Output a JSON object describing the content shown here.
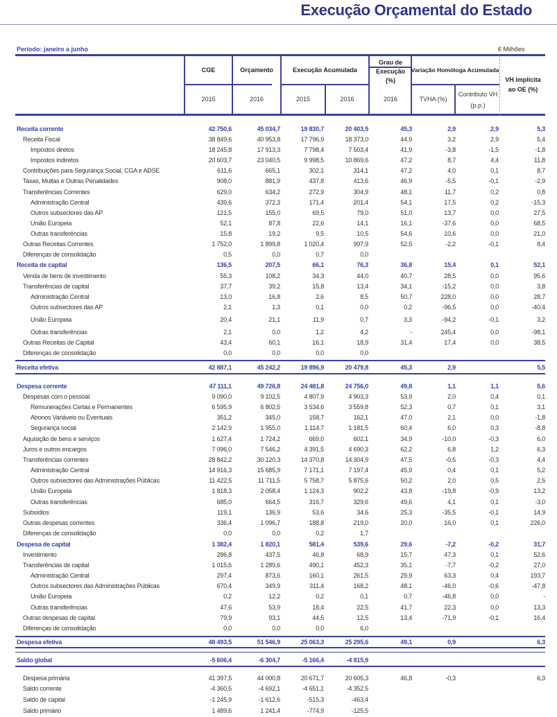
{
  "title": "Execução Orçamental do Estado",
  "period": "Período: janeiro a junho",
  "unit": "€ Milhões",
  "colors": {
    "accent": "#3b44a6",
    "rule": "#3b4199"
  },
  "header": {
    "cge": "CGE",
    "orcamento": "Orçamento",
    "execucao": "Execução Acumulada",
    "grau": "Grau de Execução (%)",
    "variacao": "Variação Homóloga Acumulada",
    "vh": "VH implícita ao OE (%)",
    "y_cge": "2015",
    "y_orc": "2016",
    "y_e15": "2015",
    "y_e16": "2016",
    "y_grau": "2016",
    "tvha": "TVHA (%)",
    "contributo": "Contributo VH (p.p.)"
  },
  "rows": [
    {
      "label": "Receita corrente",
      "level": 0,
      "v": [
        "42 750,6",
        "45 034,7",
        "19 830,7",
        "20 403,5",
        "45,3",
        "2,9",
        "2,9",
        "5,3"
      ]
    },
    {
      "label": "Receita Fiscal",
      "level": 1,
      "v": [
        "38 849,6",
        "40 953,8",
        "17 796,9",
        "18 373,0",
        "44,9",
        "3,2",
        "2,9",
        "5,4"
      ]
    },
    {
      "label": "Impostos diretos",
      "level": 2,
      "v": [
        "18 245,8",
        "17 913,3",
        "7 798,4",
        "7 503,4",
        "41,9",
        "-3,8",
        "-1,5",
        "-1,8"
      ]
    },
    {
      "label": "Impostos indiretos",
      "level": 2,
      "v": [
        "20 603,7",
        "23 040,5",
        "9 998,5",
        "10 869,6",
        "47,2",
        "8,7",
        "4,4",
        "11,8"
      ]
    },
    {
      "label": "Contribuições para Segurança Social, CGA e ADSE",
      "level": 1,
      "v": [
        "611,6",
        "665,1",
        "302,1",
        "314,1",
        "47,2",
        "4,0",
        "0,1",
        "8,7"
      ]
    },
    {
      "label": "Taxas, Multas e Outras Penalidades",
      "level": 1,
      "v": [
        "908,0",
        "881,9",
        "437,8",
        "413,6",
        "46,9",
        "-5,5",
        "-0,1",
        "-2,9"
      ]
    },
    {
      "label": "Transferências Correntes",
      "level": 1,
      "v": [
        "629,0",
        "634,2",
        "272,9",
        "304,9",
        "48,1",
        "11,7",
        "0,2",
        "0,8"
      ]
    },
    {
      "label": "Administração Central",
      "level": 2,
      "v": [
        "439,6",
        "372,3",
        "171,4",
        "201,4",
        "54,1",
        "17,5",
        "0,2",
        "-15,3"
      ]
    },
    {
      "label": "Outros subsectores das AP",
      "level": 2,
      "v": [
        "121,5",
        "155,0",
        "69,5",
        "79,0",
        "51,0",
        "13,7",
        "0,0",
        "27,5"
      ]
    },
    {
      "label": "União Europeia",
      "level": 2,
      "v": [
        "52,1",
        "87,8",
        "22,6",
        "14,1",
        "16,1",
        "-37,6",
        "0,0",
        "68,5"
      ]
    },
    {
      "label": "Outras transferências",
      "level": 2,
      "v": [
        "15,8",
        "19,2",
        "9,5",
        "10,5",
        "54,6",
        "10,6",
        "0,0",
        "21,0"
      ]
    },
    {
      "label": "Outras Receitas Correntes",
      "level": 1,
      "v": [
        "1 752,0",
        "1 899,8",
        "1 020,4",
        "997,9",
        "52,5",
        "-2,2",
        "-0,1",
        "8,4"
      ]
    },
    {
      "label": "Diferenças de consolidação",
      "level": 1,
      "v": [
        "0,5",
        "0,0",
        "0,7",
        "0,0",
        "",
        "",
        "",
        ""
      ]
    },
    {
      "label": "Receita de capital",
      "level": 0,
      "v": [
        "136,5",
        "207,5",
        "66,1",
        "76,3",
        "36,8",
        "15,4",
        "0,1",
        "52,1"
      ]
    },
    {
      "label": "Venda de bens de investimento",
      "level": 1,
      "v": [
        "55,3",
        "108,2",
        "34,3",
        "44,0",
        "40,7",
        "28,5",
        "0,0",
        "95,6"
      ]
    },
    {
      "label": "Transferências de capital",
      "level": 1,
      "v": [
        "37,7",
        "39,2",
        "15,8",
        "13,4",
        "34,1",
        "-15,2",
        "0,0",
        "3,8"
      ]
    },
    {
      "label": "Administração Central",
      "level": 2,
      "v": [
        "13,0",
        "16,8",
        "2,6",
        "8,5",
        "50,7",
        "228,0",
        "0,0",
        "28,7"
      ]
    },
    {
      "label": "Outros subsectores das AP",
      "level": 2,
      "v": [
        "2,1",
        "1,3",
        "0,1",
        "0,0",
        "0,2",
        "-96,5",
        "0,0",
        "-40,4"
      ]
    },
    {
      "label": "União Europeia",
      "level": 2,
      "v": [
        "20,4",
        "21,1",
        "11,9",
        "0,7",
        "3,3",
        "-94,2",
        "-0,1",
        "3,2"
      ]
    },
    {
      "label": "Outras transferências",
      "level": 2,
      "v": [
        "2,1",
        "0,0",
        "1,2",
        "4,2",
        "-",
        "245,4",
        "0,0",
        "-98,1"
      ]
    },
    {
      "label": "Outras Receitas de Capital",
      "level": 1,
      "v": [
        "43,4",
        "60,1",
        "16,1",
        "18,9",
        "31,4",
        "17,4",
        "0,0",
        "38,5"
      ]
    },
    {
      "label": "Diferenças de consolidação",
      "level": 1,
      "v": [
        "0,0",
        "0,0",
        "0,0",
        "0,0",
        "",
        "",
        "",
        ""
      ]
    },
    {
      "label": "Receita efetiva",
      "level": 0,
      "v": [
        "42 887,1",
        "45 242,2",
        "19 896,9",
        "20 479,8",
        "45,3",
        "2,9",
        "",
        "5,5"
      ]
    },
    {
      "label": "Despesa corrente",
      "level": 0,
      "v": [
        "47 111,1",
        "49 726,8",
        "24 481,8",
        "24 756,0",
        "49,8",
        "1,1",
        "1,1",
        "5,6"
      ]
    },
    {
      "label": "Despesas com o pessoal",
      "level": 1,
      "v": [
        "9 090,0",
        "9 102,5",
        "4 807,9",
        "4 903,3",
        "53,9",
        "2,0",
        "0,4",
        "0,1"
      ]
    },
    {
      "label": "Remunerações Certas e Permanentes",
      "level": 2,
      "v": [
        "6 595,9",
        "6 802,5",
        "3 534,6",
        "3 559,8",
        "52,3",
        "0,7",
        "0,1",
        "3,1"
      ]
    },
    {
      "label": "Abonos Variáveis ou Eventuais",
      "level": 2,
      "v": [
        "351,2",
        "345,0",
        "158,7",
        "162,1",
        "47,0",
        "2,1",
        "0,0",
        "-1,8"
      ]
    },
    {
      "label": "Segurança social",
      "level": 2,
      "v": [
        "2 142,9",
        "1 955,0",
        "1 114,7",
        "1 181,5",
        "60,4",
        "6,0",
        "0,3",
        "-8,8"
      ]
    },
    {
      "label": "Aquisição de bens e serviços",
      "level": 1,
      "v": [
        "1 627,4",
        "1 724,2",
        "669,0",
        "602,1",
        "34,9",
        "-10,0",
        "-0,3",
        "6,0"
      ]
    },
    {
      "label": "Juros e outros encargos",
      "level": 1,
      "v": [
        "7 096,0",
        "7 546,2",
        "4 391,5",
        "4 690,3",
        "62,2",
        "6,8",
        "1,2",
        "6,3"
      ]
    },
    {
      "label": "Transferências correntes",
      "level": 1,
      "v": [
        "28 842,2",
        "30 120,3",
        "14 370,8",
        "14 304,9",
        "47,5",
        "-0,5",
        "-0,3",
        "4,4"
      ]
    },
    {
      "label": "Administração Central",
      "level": 2,
      "v": [
        "14 916,3",
        "15 685,9",
        "7 171,1",
        "7 197,4",
        "45,9",
        "0,4",
        "0,1",
        "5,2"
      ]
    },
    {
      "label": "Outros subsectores das Administrações Públicas",
      "level": 2,
      "v": [
        "11 422,5",
        "11 711,5",
        "5 758,7",
        "5 875,6",
        "50,2",
        "2,0",
        "0,5",
        "2,5"
      ]
    },
    {
      "label": "União Europeia",
      "level": 2,
      "v": [
        "1 818,3",
        "2 058,4",
        "1 124,3",
        "902,2",
        "43,8",
        "-19,8",
        "-0,9",
        "13,2"
      ]
    },
    {
      "label": "Outras transferências",
      "level": 2,
      "v": [
        "685,0",
        "664,5",
        "316,7",
        "329,6",
        "49,6",
        "4,1",
        "0,1",
        "-3,0"
      ]
    },
    {
      "label": "Subsídios",
      "level": 1,
      "v": [
        "119,1",
        "136,9",
        "53,6",
        "34,6",
        "25,3",
        "-35,5",
        "-0,1",
        "14,9"
      ]
    },
    {
      "label": "Outras despesas correntes",
      "level": 1,
      "v": [
        "336,4",
        "1 096,7",
        "188,8",
        "219,0",
        "20,0",
        "16,0",
        "0,1",
        "226,0"
      ]
    },
    {
      "label": "Diferenças de consolidação",
      "level": 1,
      "v": [
        "0,0",
        "0,0",
        "0,2",
        "1,7",
        "",
        "",
        "",
        ""
      ]
    },
    {
      "label": "Despesa de capital",
      "level": 0,
      "v": [
        "1 382,4",
        "1 820,1",
        "581,4",
        "539,6",
        "29,6",
        "-7,2",
        "-0,2",
        "31,7"
      ]
    },
    {
      "label": "Investimento",
      "level": 1,
      "v": [
        "286,8",
        "437,5",
        "46,8",
        "68,9",
        "15,7",
        "47,3",
        "0,1",
        "52,6"
      ]
    },
    {
      "label": "Transferências de capital",
      "level": 1,
      "v": [
        "1 015,6",
        "1 289,6",
        "490,1",
        "452,3",
        "35,1",
        "-7,7",
        "-0,2",
        "27,0"
      ]
    },
    {
      "label": "Administração Central",
      "level": 2,
      "v": [
        "297,4",
        "873,6",
        "160,1",
        "261,5",
        "29,9",
        "63,3",
        "0,4",
        "193,7"
      ]
    },
    {
      "label": "Outros subsectores das Administrações Públicas",
      "level": 2,
      "v": [
        "670,4",
        "349,9",
        "311,4",
        "168,2",
        "48,1",
        "-46,0",
        "-0,6",
        "-47,8"
      ]
    },
    {
      "label": "União Europeia",
      "level": 2,
      "v": [
        "0,2",
        "12,2",
        "0,2",
        "0,1",
        "0,7",
        "-46,8",
        "0,0",
        "-"
      ]
    },
    {
      "label": "Outras transferências",
      "level": 2,
      "v": [
        "47,6",
        "53,9",
        "18,4",
        "22,5",
        "41,7",
        "22,3",
        "0,0",
        "13,3"
      ]
    },
    {
      "label": "Outras despesas de capital",
      "level": 1,
      "v": [
        "79,9",
        "93,1",
        "44,5",
        "12,5",
        "13,4",
        "-71,9",
        "-0,1",
        "16,4"
      ]
    },
    {
      "label": "Diferenças de consolidação",
      "level": 1,
      "v": [
        "0,0",
        "0,0",
        "0,0",
        "6,0",
        "",
        "",
        "",
        ""
      ]
    },
    {
      "label": "Despesa efetiva",
      "level": 0,
      "v": [
        "48 493,5",
        "51 546,9",
        "25 063,3",
        "25 295,6",
        "49,1",
        "0,9",
        "",
        "6,3"
      ]
    },
    {
      "label": "Saldo global",
      "level": 0,
      "v": [
        "-5 606,4",
        "-6 304,7",
        "-5 166,4",
        "-4 815,9",
        "",
        "",
        "",
        ""
      ]
    },
    {
      "label": "Despesa  primária",
      "level": 1,
      "v": [
        "41 397,5",
        "44 000,8",
        "20 671,7",
        "20 605,3",
        "46,8",
        "-0,3",
        "",
        "6,3"
      ]
    },
    {
      "label": "Saldo corrente",
      "level": 1,
      "v": [
        "-4 360,5",
        "-4 692,1",
        "-4 651,1",
        "-4 352,5",
        "",
        "",
        "",
        ""
      ]
    },
    {
      "label": "Saldo de capital",
      "level": 1,
      "v": [
        "-1 245,9",
        "-1 612,6",
        "-515,3",
        "-463,4",
        "",
        "",
        "",
        ""
      ]
    },
    {
      "label": "Saldo primário",
      "level": 1,
      "v": [
        "1 489,6",
        "1 241,4",
        "-774,9",
        "-125,5",
        "",
        "",
        "",
        ""
      ]
    }
  ]
}
